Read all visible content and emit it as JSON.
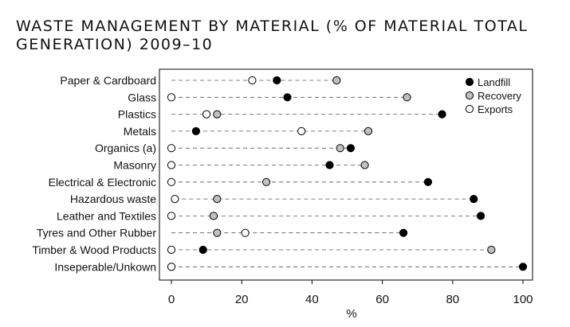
{
  "chart_data": {
    "type": "scatter",
    "title": "WASTE MANAGEMENT BY MATERIAL (% OF MATERIAL TOTAL\nGENERATION) 2009–10",
    "xlabel": "%",
    "ylabel": "",
    "xlim": [
      0,
      100
    ],
    "xticks": [
      "0",
      "20",
      "40",
      "60",
      "80",
      "100"
    ],
    "legend_position": "top-right",
    "grid": false,
    "categories": [
      "Paper & Cardboard",
      "Glass",
      "Plastics",
      "Metals",
      "Organics (a)",
      "Masonry",
      "Electrical & Electronic",
      "Hazardous waste",
      "Leather and Textiles",
      "Tyres and Other Rubber",
      "Timber & Wood Products",
      "Inseperable/Unkown"
    ],
    "series": [
      {
        "name": "Landfill",
        "color": "#000000",
        "values": [
          30,
          33,
          77,
          7,
          51,
          45,
          73,
          86,
          88,
          66,
          9,
          100
        ]
      },
      {
        "name": "Recovery",
        "color": "#c0c0c0",
        "values": [
          47,
          67,
          13,
          56,
          48,
          55,
          27,
          13,
          12,
          13,
          91,
          0
        ]
      },
      {
        "name": "Exports",
        "color": "#ffffff",
        "values": [
          23,
          0,
          10,
          37,
          0,
          0,
          0,
          1,
          0,
          21,
          0,
          0
        ]
      }
    ]
  }
}
